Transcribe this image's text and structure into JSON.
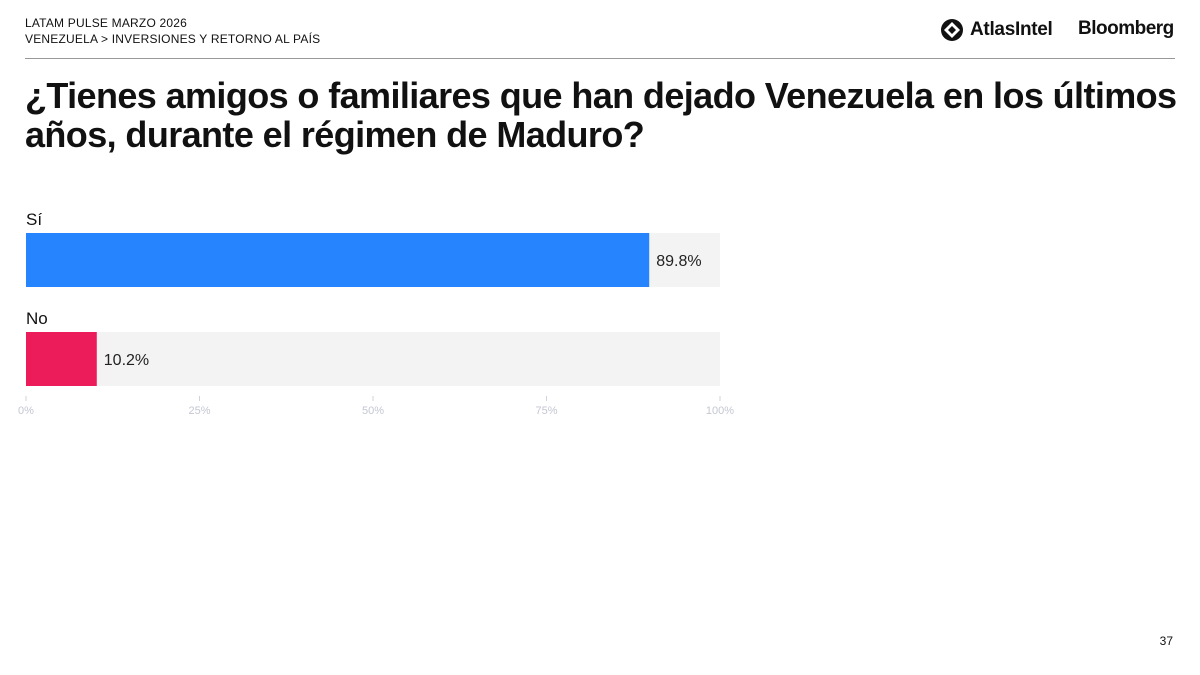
{
  "header": {
    "line1": "LATAM PULSE MARZO 2026",
    "line2": "VENEZUELA > INVERSIONES Y RETORNO AL PAÍS",
    "logo_atlas": "AtlasIntel",
    "logo_bloomberg": "Bloomberg"
  },
  "title": "¿Tienes amigos o familiares que han dejado Venezuela en los últimos años, durante el régimen de Maduro?",
  "chart_data": {
    "type": "bar",
    "orientation": "horizontal",
    "categories": [
      "Sí",
      "No"
    ],
    "values": [
      89.8,
      10.2
    ],
    "value_labels": [
      "89.8%",
      "10.2%"
    ],
    "colors": [
      "#2684FF",
      "#EC1C5A"
    ],
    "track_color": "#F3F3F3",
    "xlim": [
      0,
      100
    ],
    "ticks": [
      0,
      25,
      50,
      75,
      100
    ],
    "tick_labels": [
      "0%",
      "25%",
      "50%",
      "75%",
      "100%"
    ]
  },
  "page_number": "37"
}
